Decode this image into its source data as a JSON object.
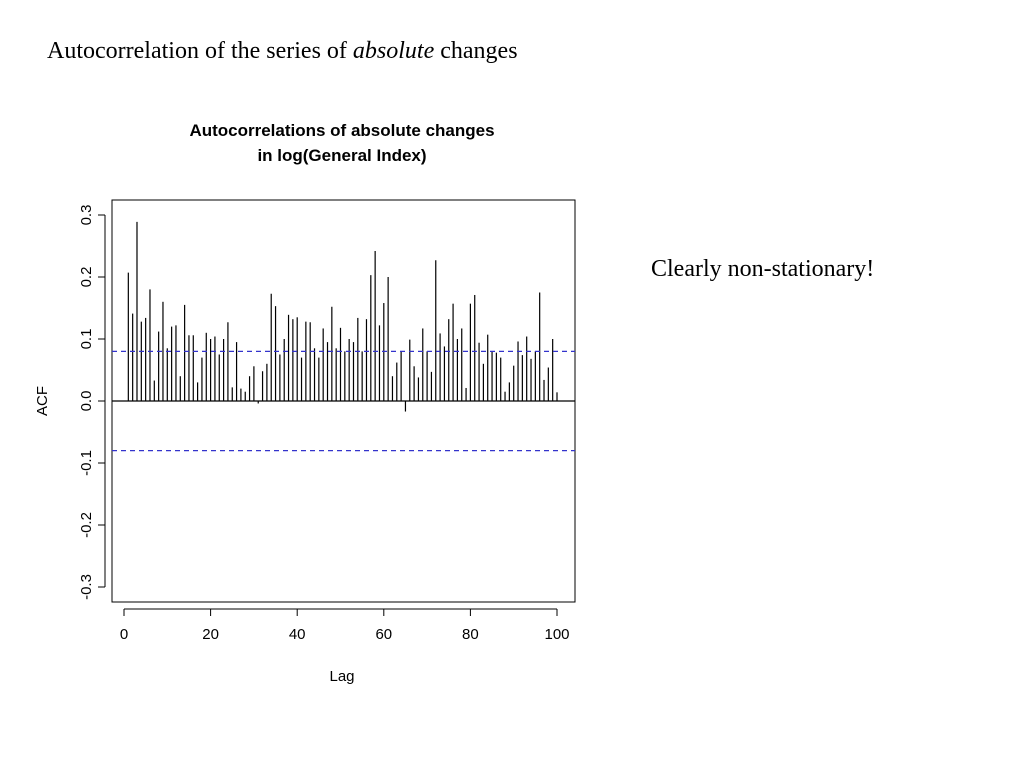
{
  "slide": {
    "title_part1": "Autocorrelation of the series of ",
    "title_emph": "absolute",
    "title_part2": " changes",
    "side_note": "Clearly non-stationary!"
  },
  "chart_data": {
    "type": "bar",
    "title": [
      "Autocorrelations of absolute changes",
      "in log(General Index)"
    ],
    "xlabel": "Lag",
    "ylabel": "ACF",
    "xlim": [
      0,
      100
    ],
    "ylim": [
      -0.3,
      0.3
    ],
    "x_ticks": [
      "0",
      "20",
      "40",
      "60",
      "80",
      "100"
    ],
    "y_ticks": [
      "-0.3",
      "-0.2",
      "-0.1",
      "0.0",
      "0.1",
      "0.2",
      "0.3"
    ],
    "confidence_bound": 0.08,
    "confidence_color": "#3333cc",
    "bar_color": "#000000",
    "grid": false,
    "lags": [
      1,
      2,
      3,
      4,
      5,
      6,
      7,
      8,
      9,
      10,
      11,
      12,
      13,
      14,
      15,
      16,
      17,
      18,
      19,
      20,
      21,
      22,
      23,
      24,
      25,
      26,
      27,
      28,
      29,
      30,
      31,
      32,
      33,
      34,
      35,
      36,
      37,
      38,
      39,
      40,
      41,
      42,
      43,
      44,
      45,
      46,
      47,
      48,
      49,
      50,
      51,
      52,
      53,
      54,
      55,
      56,
      57,
      58,
      59,
      60,
      61,
      62,
      63,
      64,
      65,
      66,
      67,
      68,
      69,
      70,
      71,
      72,
      73,
      74,
      75,
      76,
      77,
      78,
      79,
      80,
      81,
      82,
      83,
      84,
      85,
      86,
      87,
      88,
      89,
      90,
      91,
      92,
      93,
      94,
      95,
      96,
      97,
      98,
      99,
      100
    ],
    "values": [
      0.207,
      0.141,
      0.289,
      0.128,
      0.134,
      0.18,
      0.033,
      0.112,
      0.16,
      0.085,
      0.12,
      0.122,
      0.04,
      0.155,
      0.106,
      0.106,
      0.03,
      0.07,
      0.11,
      0.1,
      0.104,
      0.075,
      0.1,
      0.127,
      0.022,
      0.095,
      0.02,
      0.015,
      0.04,
      0.056,
      -0.004,
      0.048,
      0.06,
      0.173,
      0.153,
      0.075,
      0.1,
      0.139,
      0.132,
      0.135,
      0.07,
      0.128,
      0.127,
      0.085,
      0.07,
      0.117,
      0.095,
      0.152,
      0.085,
      0.118,
      0.08,
      0.1,
      0.095,
      0.134,
      0.08,
      0.132,
      0.203,
      0.242,
      0.122,
      0.158,
      0.2,
      0.04,
      0.062,
      0.08,
      -0.017,
      0.099,
      0.056,
      0.038,
      0.117,
      0.08,
      0.047,
      0.227,
      0.109,
      0.088,
      0.132,
      0.157,
      0.1,
      0.117,
      0.021,
      0.157,
      0.171,
      0.094,
      0.06,
      0.107,
      0.08,
      0.078,
      0.07,
      0.015,
      0.03,
      0.057,
      0.096,
      0.074,
      0.104,
      0.068,
      0.08,
      0.175,
      0.034,
      0.054,
      0.1,
      0.014
    ]
  }
}
